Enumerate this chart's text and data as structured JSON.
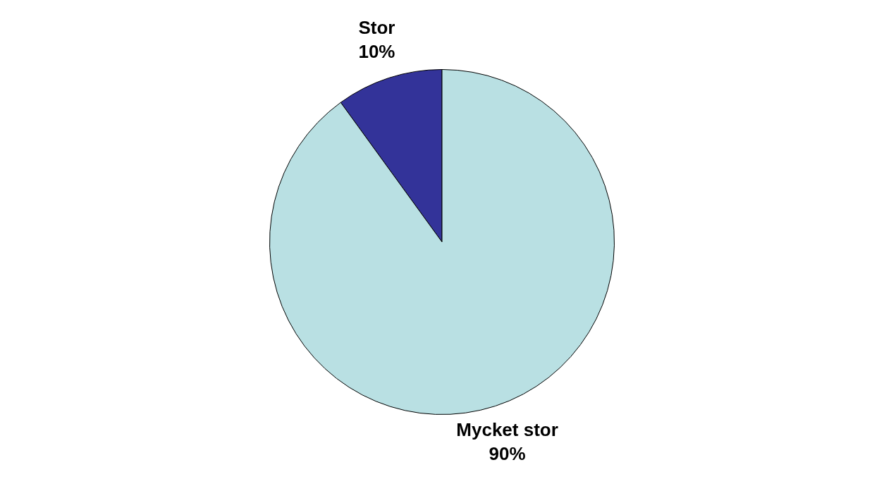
{
  "chart_data": {
    "type": "pie",
    "categories": [
      "Stor",
      "Mycket stor"
    ],
    "values": [
      10,
      90
    ],
    "colors": [
      "#333399",
      "#b9e0e3"
    ],
    "value_labels": [
      "10%",
      "90%"
    ],
    "legend": false
  }
}
